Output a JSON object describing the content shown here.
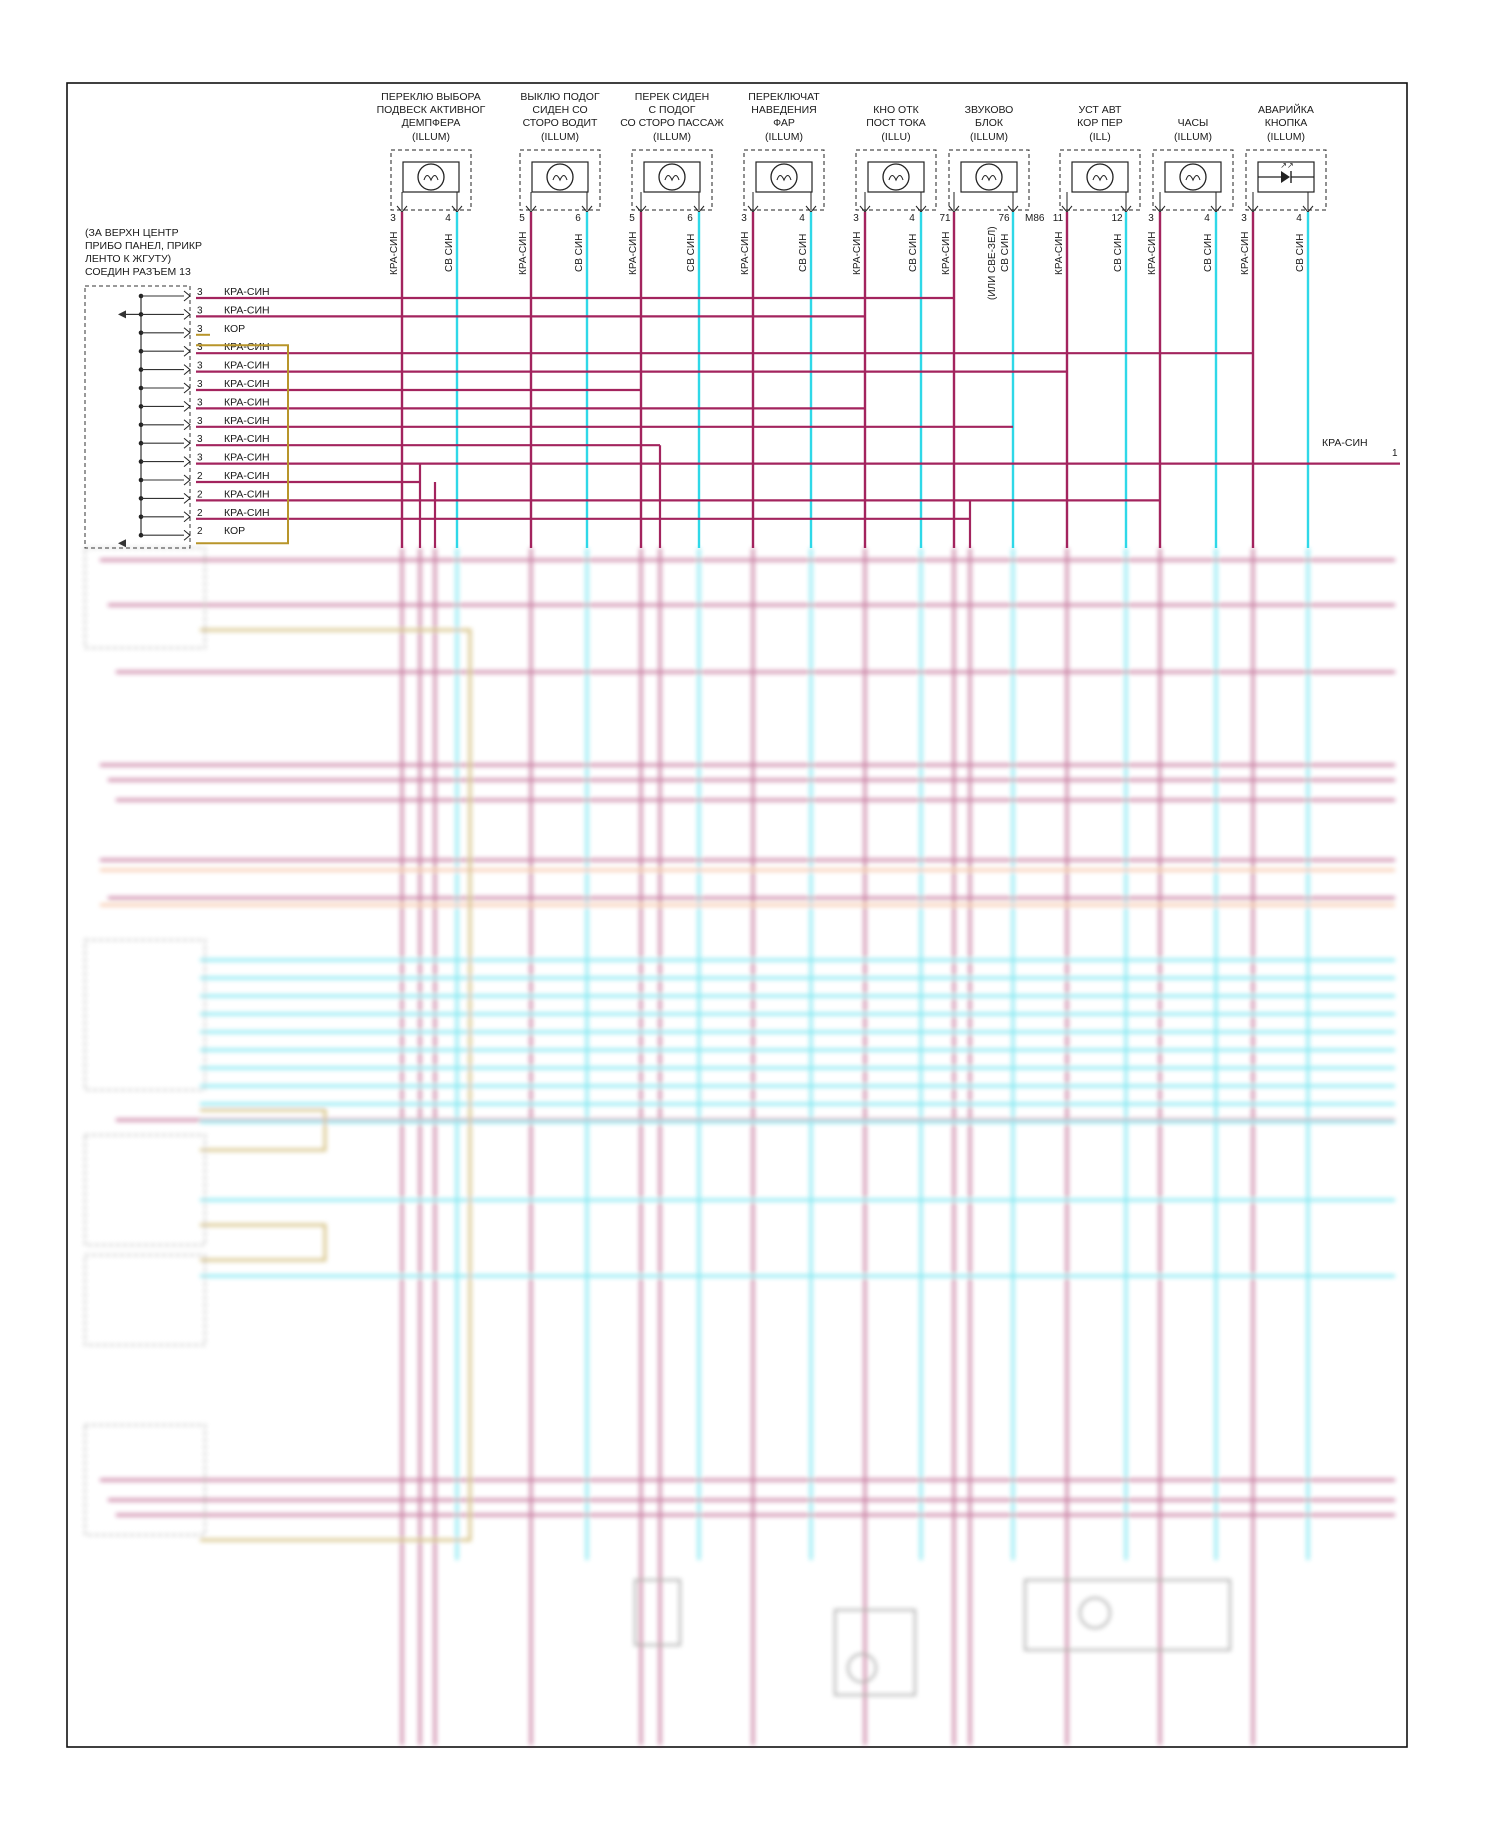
{
  "colors": {
    "red_wire": "#a3245e",
    "cyan_wire": "#2fd8e8",
    "gold_wire": "#b8952a",
    "orange_wire": "#f0a070",
    "frame": "#111111"
  },
  "components": [
    {
      "l1": "ПЕРЕКЛЮ ВЫБОРА",
      "l2": "ПОДВЕСК АКТИВНОГ",
      "l3": "ДЕМПФЕРА",
      "l4": "(ILLUM)",
      "p1": "3",
      "p2": "4",
      "w1": "КРА-СИН",
      "w2": "СВ СИН"
    },
    {
      "l1": "ВЫКЛЮ ПОДОГ",
      "l2": "СИДЕН СО",
      "l3": "СТОРО ВОДИТ",
      "l4": "(ILLUM)",
      "p1": "5",
      "p2": "6",
      "w1": "КРА-СИН",
      "w2": "СВ СИН"
    },
    {
      "l1": "ПЕРЕК СИДЕН",
      "l2": "С ПОДОГ",
      "l3": "СО СТОРО ПАССАЖ",
      "l4": "(ILLUM)",
      "p1": "5",
      "p2": "6",
      "w1": "КРА-СИН",
      "w2": "СВ СИН"
    },
    {
      "l1": "ПЕРЕКЛЮЧАТ",
      "l2": "НАВЕДЕНИЯ",
      "l3": "ФАР",
      "l4": "(ILLUM)",
      "p1": "3",
      "p2": "4",
      "w1": "КРА-СИН",
      "w2": "СВ СИН"
    },
    {
      "l1": "",
      "l2": "КНО ОТК",
      "l3": "ПОСТ ТОКА",
      "l4": "(ILLU)",
      "p1": "3",
      "p2": "4",
      "w1": "КРА-СИН",
      "w2": "СВ СИН"
    },
    {
      "l1": "",
      "l2": "ЗВУКОВО",
      "l3": "БЛОК",
      "l4": "(ILLUM)",
      "p1": "71",
      "p2": "76",
      "w1": "КРА-СИН",
      "w2": "СВ СИН",
      "extra": "M86",
      "w2b": "(ИЛИ СВЕ-ЗЕЛ)"
    },
    {
      "l1": "",
      "l2": "УСТ АВТ",
      "l3": "КОР ПЕР",
      "l4": "(ILL)",
      "p1": "11",
      "p2": "12",
      "w1": "КРА-СИН",
      "w2": "СВ СИН"
    },
    {
      "l1": "",
      "l2": "",
      "l3": "ЧАСЫ",
      "l4": "(ILLUM)",
      "p1": "3",
      "p2": "4",
      "w1": "КРА-СИН",
      "w2": "СВ СИН"
    },
    {
      "l1": "",
      "l2": "АВАРИЙКА",
      "l3": "КНОПКА",
      "l4": "(ILLUM)",
      "p1": "3",
      "p2": "4",
      "w1": "КРА-СИН",
      "w2": "СВ СИН"
    }
  ],
  "splice": {
    "l1": "(ЗА ВЕРХН ЦЕНТР",
    "l2": "ПРИБО ПАНЕЛ, ПРИКР",
    "l3": "ЛЕНТО К ЖГУТУ)",
    "l4": "СОЕДИН РАЗЪЕМ 13"
  },
  "bus_rows": [
    {
      "pin": "3",
      "label": "КРА-СИН"
    },
    {
      "pin": "3",
      "label": "КРА-СИН"
    },
    {
      "pin": "3",
      "label": "КОР"
    },
    {
      "pin": "3",
      "label": "КРА-СИН"
    },
    {
      "pin": "3",
      "label": "КРА-СИН"
    },
    {
      "pin": "3",
      "label": "КРА-СИН"
    },
    {
      "pin": "3",
      "label": "КРА-СИН"
    },
    {
      "pin": "3",
      "label": "КРА-СИН"
    },
    {
      "pin": "3",
      "label": "КРА-СИН"
    },
    {
      "pin": "3",
      "label": "КРА-СИН"
    },
    {
      "pin": "2",
      "label": "КРА-СИН"
    },
    {
      "pin": "2",
      "label": "КРА-СИН"
    },
    {
      "pin": "2",
      "label": "КРА-СИН"
    },
    {
      "pin": "2",
      "label": "КОР"
    }
  ],
  "right_exit": {
    "label": "КРА-СИН",
    "num": "1"
  }
}
